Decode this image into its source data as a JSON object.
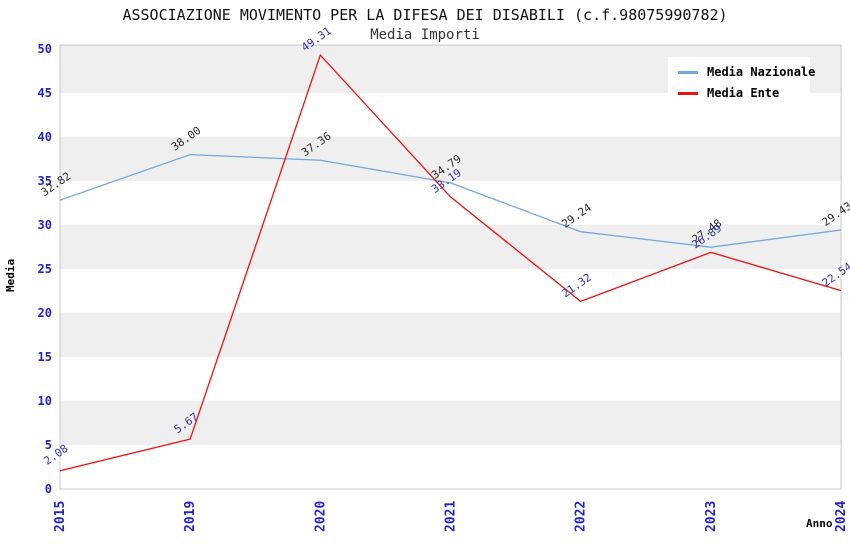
{
  "chart_data": {
    "type": "line",
    "title": "ASSOCIAZIONE MOVIMENTO PER LA DIFESA DEI DISABILI (c.f.98075990782)",
    "subtitle": "Media Importi",
    "xlabel": "Anno",
    "ylabel": "Media",
    "categories": [
      "2015",
      "2019",
      "2020",
      "2021",
      "2022",
      "2023",
      "2024"
    ],
    "series": [
      {
        "name": "Media Nazionale",
        "color": "#74a7dc",
        "label_color": "#2a2a2a",
        "values": [
          32.82,
          38.0,
          37.36,
          34.79,
          29.24,
          27.48,
          29.43
        ]
      },
      {
        "name": "Media Ente",
        "color": "#ee1111",
        "label_color": "#3333aa",
        "values": [
          2.08,
          5.67,
          49.31,
          33.19,
          21.32,
          26.89,
          22.54
        ]
      }
    ],
    "ylim": [
      0,
      50
    ],
    "ytick_step": 5,
    "grid": "horizontal-bands",
    "band_color": "#efefef",
    "border_color": "#c8c8c8",
    "tick_color": "#2222cc",
    "legend_position": "top-right"
  }
}
